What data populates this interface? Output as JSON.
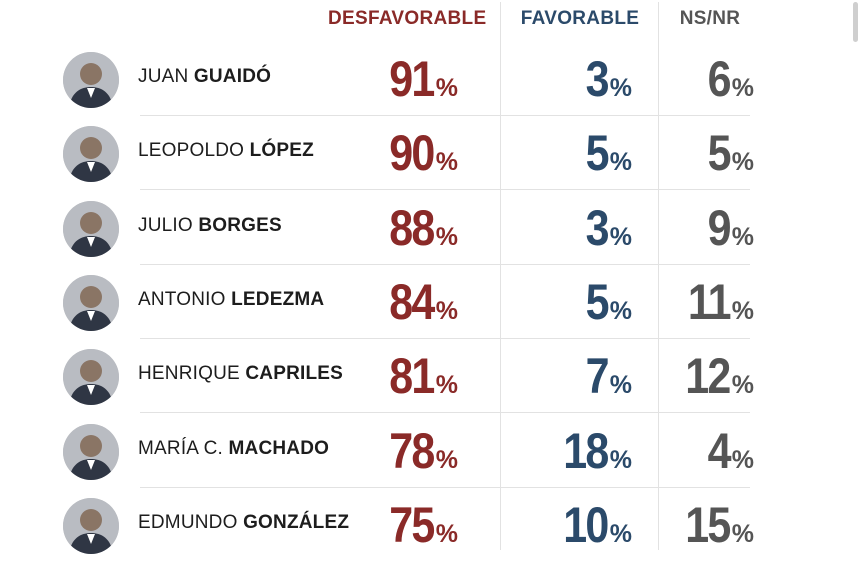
{
  "colors": {
    "desfavorable": "#8a2a28",
    "favorable": "#2b4a6a",
    "nsnr": "#555555",
    "name_text": "#1d1d1d"
  },
  "headers": {
    "desfavorable": "DESFAVORABLE",
    "favorable": "FAVORABLE",
    "nsnr": "NS/NR"
  },
  "percent_sign": "%",
  "chart_data": {
    "type": "table",
    "columns": [
      "DESFAVORABLE",
      "FAVORABLE",
      "NS/NR"
    ],
    "rows": [
      {
        "first": "JUAN",
        "last": "GUAIDÓ",
        "avatar": "person-icon",
        "desfavorable": "91",
        "favorable": "3",
        "nsnr": "6"
      },
      {
        "first": "LEOPOLDO",
        "last": "LÓPEZ",
        "avatar": "person-icon",
        "desfavorable": "90",
        "favorable": "5",
        "nsnr": "5"
      },
      {
        "first": "JULIO",
        "last": "BORGES",
        "avatar": "person-icon",
        "desfavorable": "88",
        "favorable": "3",
        "nsnr": "9"
      },
      {
        "first": "ANTONIO",
        "last": "LEDEZMA",
        "avatar": "person-icon",
        "desfavorable": "84",
        "favorable": "5",
        "nsnr": "11"
      },
      {
        "first": "HENRIQUE",
        "last": "CAPRILES",
        "avatar": "person-icon",
        "desfavorable": "81",
        "favorable": "7",
        "nsnr": "12"
      },
      {
        "first": "MARÍA C.",
        "last": "MACHADO",
        "avatar": "person-icon",
        "desfavorable": "78",
        "favorable": "18",
        "nsnr": "4"
      },
      {
        "first": "EDMUNDO",
        "last": "GONZÁLEZ",
        "avatar": "person-icon",
        "desfavorable": "75",
        "favorable": "10",
        "nsnr": "15"
      }
    ]
  }
}
